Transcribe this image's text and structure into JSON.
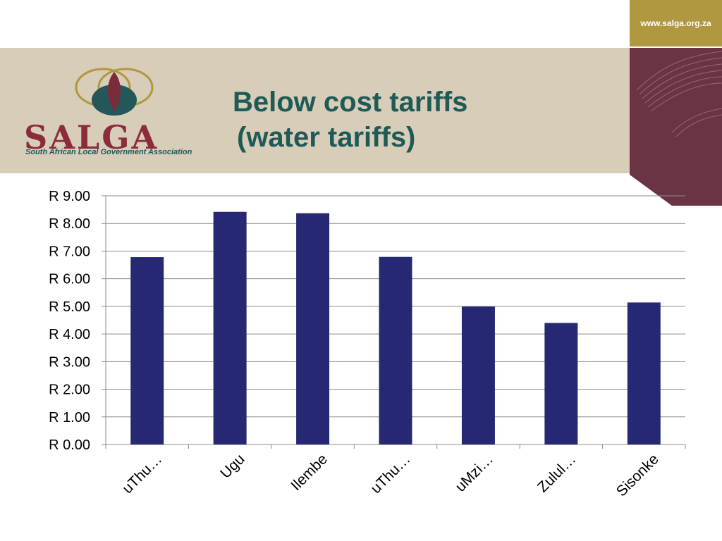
{
  "header": {
    "url": "www.salga.org.za",
    "logo_word": "SALGA",
    "logo_subtitle": "South African Local Government Association",
    "title_line1": "Below cost tariffs",
    "title_line2": "(water tariffs)"
  },
  "colors": {
    "bar": "#262873",
    "banner": "#d7cdb8",
    "accent_gold": "#b09840",
    "accent_maroon": "#6b3444",
    "title": "#1f5a57"
  },
  "chart_data": {
    "type": "bar",
    "categories": [
      "uThu…",
      "Ugu",
      "Ilembe",
      "uThu…",
      "uMzi…",
      "Zulul…",
      "Sisonke"
    ],
    "values": [
      6.78,
      8.42,
      8.37,
      6.79,
      4.99,
      4.4,
      5.14
    ],
    "ylim": [
      0,
      9
    ],
    "y_ticks": [
      "R 0.00",
      "R 1.00",
      "R 2.00",
      "R 3.00",
      "R 4.00",
      "R 5.00",
      "R 6.00",
      "R 7.00",
      "R 8.00",
      "R 9.00"
    ],
    "grid": true,
    "legend": "none"
  }
}
